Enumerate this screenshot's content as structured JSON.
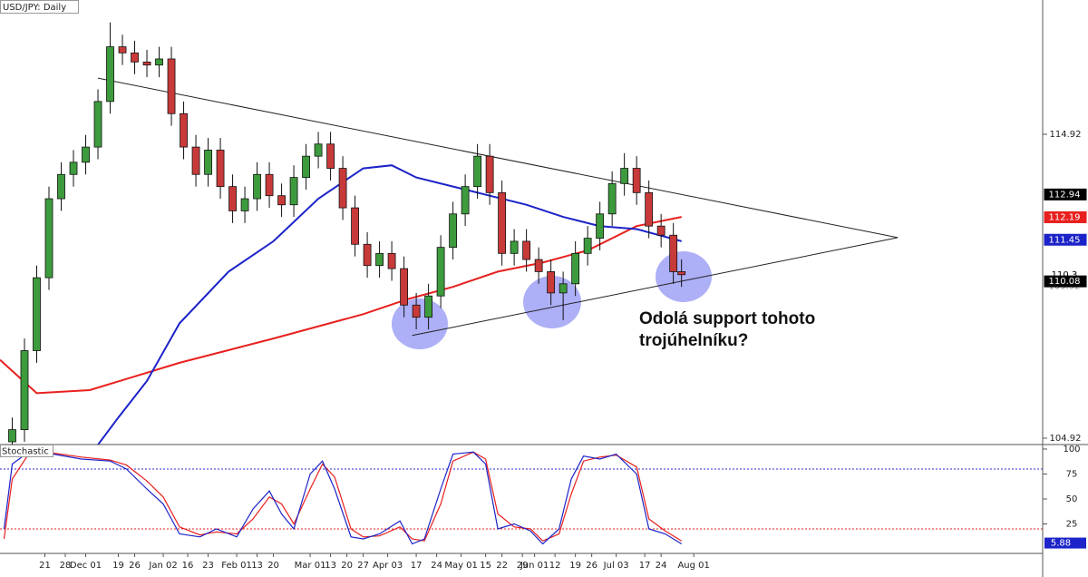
{
  "chart_data": [
    {
      "type": "candlestick",
      "title": "USD/JPY: Daily",
      "x": [
        3,
        6,
        9,
        12,
        15,
        18,
        21,
        24,
        27,
        30,
        33,
        36,
        39,
        42,
        45,
        48,
        51,
        54,
        57,
        60,
        63,
        66,
        69,
        72,
        75,
        78,
        81,
        84,
        87,
        90,
        93,
        96,
        99,
        102,
        105,
        108,
        111,
        114,
        117,
        120,
        123,
        126,
        129,
        132,
        135,
        138,
        141,
        144,
        147,
        150,
        153,
        156,
        159,
        162,
        165,
        167
      ],
      "open": [
        104.8,
        105.2,
        107.8,
        110.2,
        112.8,
        113.6,
        114.0,
        114.5,
        116.0,
        117.8,
        117.6,
        117.3,
        117.2,
        117.4,
        115.6,
        114.5,
        113.6,
        114.4,
        113.2,
        112.4,
        112.8,
        113.6,
        112.9,
        112.6,
        113.5,
        114.2,
        114.6,
        113.8,
        112.5,
        111.3,
        110.6,
        111.0,
        110.5,
        109.3,
        108.9,
        109.6,
        111.2,
        112.3,
        113.2,
        114.2,
        113.0,
        111.0,
        111.4,
        110.8,
        110.4,
        109.7,
        110.0,
        111.0,
        111.5,
        112.3,
        113.3,
        113.8,
        113.0,
        111.9,
        111.6,
        110.4
      ],
      "high": [
        105.6,
        108.2,
        110.6,
        113.2,
        114.0,
        114.4,
        114.9,
        116.4,
        118.6,
        118.2,
        118.0,
        117.7,
        117.8,
        117.8,
        116.0,
        114.9,
        114.8,
        114.8,
        113.6,
        113.2,
        114.0,
        114.0,
        113.3,
        113.9,
        114.6,
        115.0,
        115.0,
        114.2,
        112.9,
        111.7,
        111.4,
        111.4,
        110.9,
        109.7,
        110.0,
        111.6,
        112.7,
        113.6,
        114.6,
        114.6,
        113.4,
        111.8,
        111.8,
        111.2,
        110.8,
        110.4,
        111.4,
        111.9,
        112.7,
        113.7,
        114.3,
        114.2,
        113.4,
        112.3,
        112.0,
        110.8
      ],
      "low": [
        104.4,
        104.8,
        107.4,
        109.8,
        112.4,
        113.2,
        113.6,
        114.1,
        115.6,
        117.2,
        116.9,
        116.8,
        116.8,
        115.2,
        114.1,
        113.2,
        113.2,
        112.8,
        112.0,
        112.0,
        112.4,
        112.5,
        112.2,
        112.2,
        113.1,
        113.8,
        113.4,
        112.1,
        110.9,
        110.2,
        110.2,
        110.1,
        108.9,
        108.5,
        108.5,
        109.2,
        110.8,
        111.9,
        112.8,
        112.6,
        110.6,
        110.6,
        110.4,
        110.0,
        109.3,
        108.8,
        109.6,
        110.6,
        111.1,
        111.9,
        112.9,
        112.6,
        111.5,
        111.2,
        110.0,
        109.9
      ],
      "close": [
        105.2,
        107.8,
        110.2,
        112.8,
        113.6,
        114.0,
        114.5,
        116.0,
        117.8,
        117.6,
        117.3,
        117.2,
        117.4,
        115.6,
        114.5,
        113.6,
        114.4,
        113.2,
        112.4,
        112.8,
        113.6,
        112.9,
        112.6,
        113.5,
        114.2,
        114.6,
        113.8,
        112.5,
        111.3,
        110.6,
        111.0,
        110.5,
        109.3,
        108.9,
        109.6,
        111.2,
        112.3,
        113.2,
        114.2,
        113.0,
        111.0,
        111.4,
        110.8,
        110.4,
        109.7,
        110.0,
        111.0,
        111.5,
        112.3,
        113.3,
        113.8,
        113.0,
        111.9,
        111.6,
        110.4,
        110.3
      ],
      "up_color": "#3d9b3d",
      "down_color": "#c83a3a",
      "series": [
        {
          "color": "#e8201e",
          "x": [
            0,
            9,
            22,
            44,
            67,
            89,
            100,
            111,
            122,
            133,
            144,
            156,
            167
          ],
          "values": [
            107.5,
            106.4,
            106.5,
            107.4,
            108.2,
            109.0,
            109.5,
            109.9,
            110.4,
            110.7,
            111.1,
            111.9,
            112.2
          ]
        },
        {
          "color": "#1c23c8",
          "x": [
            24,
            29,
            36,
            44,
            56,
            67,
            78,
            89,
            96,
            102,
            111,
            120,
            129,
            138,
            147,
            156,
            167
          ],
          "values": [
            104.7,
            105.6,
            106.8,
            108.7,
            110.4,
            111.4,
            112.8,
            113.8,
            113.9,
            113.5,
            113.2,
            112.9,
            112.6,
            112.2,
            111.9,
            111.8,
            111.4
          ]
        }
      ],
      "trendlines": [
        {
          "x": [
            24,
            220
          ],
          "y": [
            116.77,
            111.52
          ]
        },
        {
          "x": [
            101,
            220
          ],
          "y": [
            108.3,
            111.52
          ]
        }
      ],
      "xlim": [
        0,
        255.5
      ],
      "ylim": [
        104.71,
        119.34
      ],
      "yticks": [
        104.92,
        114.92
      ],
      "price_labels": [
        {
          "value": 112.94,
          "color": "#000000",
          "text_color": "#ffffff"
        },
        {
          "value": 112.19,
          "color": "#e8201e",
          "text_color": "#ffffff"
        },
        {
          "value": 111.45,
          "color": "#1c23c8",
          "text_color": "#ffffff"
        },
        {
          "value": 109.92,
          "color": "#ffffff",
          "text_color": "#888888"
        },
        {
          "value": 110.3,
          "color": "#ffffff",
          "text_color": "#000000"
        },
        {
          "value": 110.08,
          "color": "#000000",
          "text_color": "#ffffff"
        }
      ],
      "annotation": "Odolá support tohoto trojúhelníku?"
    },
    {
      "type": "line",
      "title": "Stochastic",
      "x": [
        1,
        3,
        7,
        13,
        20,
        27,
        31,
        36,
        40,
        44,
        49,
        53,
        58,
        62,
        66,
        69,
        72,
        76,
        79,
        82,
        86,
        89,
        93,
        98,
        101,
        104,
        108,
        111,
        116,
        119,
        122,
        126,
        130,
        133,
        137,
        140,
        143,
        147,
        151,
        156,
        159,
        163,
        167
      ],
      "series": [
        {
          "color": "#e8201e",
          "values": [
            10,
            70,
            95,
            96,
            92,
            89,
            84,
            68,
            52,
            22,
            14,
            17,
            15,
            30,
            52,
            45,
            25,
            60,
            85,
            72,
            20,
            12,
            13,
            22,
            10,
            8,
            45,
            88,
            97,
            90,
            35,
            22,
            20,
            8,
            15,
            55,
            88,
            92,
            94,
            82,
            30,
            18,
            8
          ]
        },
        {
          "color": "#1c23c8",
          "values": [
            20,
            85,
            97,
            95,
            90,
            88,
            80,
            60,
            45,
            15,
            12,
            20,
            12,
            40,
            58,
            35,
            20,
            75,
            88,
            60,
            12,
            10,
            15,
            28,
            5,
            10,
            60,
            95,
            97,
            85,
            20,
            25,
            18,
            5,
            20,
            70,
            93,
            90,
            95,
            75,
            20,
            15,
            5
          ]
        }
      ],
      "levels": [
        {
          "value": 80,
          "color": "#2b2bd0"
        },
        {
          "value": 20,
          "color": "#e02020"
        }
      ],
      "last_label": {
        "value": 5.88,
        "color": "#1c23c8"
      },
      "xlim": [
        0,
        255.5
      ],
      "ylim": [
        -4.5,
        104.5
      ],
      "yticks": [
        100,
        75,
        50,
        25
      ],
      "xticks": [
        {
          "value": 11,
          "label": "21"
        },
        {
          "value": 16,
          "label": "28"
        },
        {
          "value": 21,
          "label": "Dec 01"
        },
        {
          "value": 29,
          "label": "19"
        },
        {
          "value": 33,
          "label": "26"
        },
        {
          "value": 40,
          "label": "Jan 02"
        },
        {
          "value": 46,
          "label": "16"
        },
        {
          "value": 51,
          "label": "23"
        },
        {
          "value": 58,
          "label": "Feb 01"
        },
        {
          "value": 63,
          "label": "13"
        },
        {
          "value": 67,
          "label": "20"
        },
        {
          "value": 76,
          "label": "Mar 01"
        },
        {
          "value": 81,
          "label": "13"
        },
        {
          "value": 85,
          "label": "20"
        },
        {
          "value": 89,
          "label": "27"
        },
        {
          "value": 95,
          "label": "Apr 03"
        },
        {
          "value": 102,
          "label": "17"
        },
        {
          "value": 107,
          "label": "24"
        },
        {
          "value": 113,
          "label": "May 01"
        },
        {
          "value": 119,
          "label": "15"
        },
        {
          "value": 123,
          "label": "22"
        },
        {
          "value": 128,
          "label": "29"
        },
        {
          "value": 131,
          "label": "Jun 01"
        },
        {
          "value": 136,
          "label": "12"
        },
        {
          "value": 141,
          "label": "19"
        },
        {
          "value": 145,
          "label": "26"
        },
        {
          "value": 151,
          "label": "Jul 03"
        },
        {
          "value": 158,
          "label": "17"
        },
        {
          "value": 162,
          "label": "24"
        },
        {
          "value": 170,
          "label": "Aug 01"
        }
      ]
    }
  ]
}
